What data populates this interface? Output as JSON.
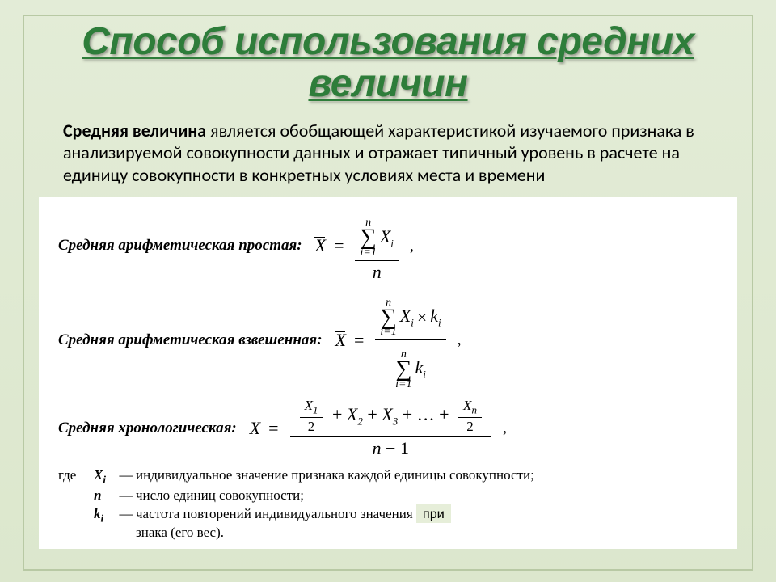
{
  "slide": {
    "background_gradient": [
      "#e3ecd7",
      "#dce7cd"
    ],
    "border_color": "#b8c9a4",
    "title": "Способ использования средних величин",
    "title_color": "#2e7d3a",
    "title_fontsize": 48,
    "title_style": "bold italic underline",
    "title_shadow": "2px 2px 3px rgba(0,0,0,0.35)"
  },
  "paragraph": {
    "lead": "Средняя величина",
    "body": " является обобщающей характеристикой изучаемого признака в анализируемой совокупности данных и отражает типичный уровень в расчете на единицу совокупности в конкретных условиях места и времени",
    "fontsize": 22,
    "color": "#000000"
  },
  "formulas": {
    "background_color": "#ffffff",
    "label_fontsize": 19,
    "formula_fontsize": 22,
    "items": [
      {
        "label": "Средняя арифметическая простая:",
        "lhs": "X̄",
        "numerator": "Σ(i=1..n) Xᵢ",
        "denominator": "n",
        "trailing": ","
      },
      {
        "label": "Средняя арифметическая взвешенная:",
        "lhs": "X̄",
        "numerator": "Σ(i=1..n) Xᵢ × kᵢ",
        "denominator": "Σ(i=1..n) kᵢ",
        "trailing": ","
      },
      {
        "label": "Средняя хронологическая:",
        "lhs": "X̄",
        "numerator": "X₁/2 + X₂ + X₃ + … + Xₙ/2",
        "denominator": "n − 1",
        "trailing": ","
      }
    ]
  },
  "definitions": {
    "where": "где",
    "items": [
      {
        "sym": "Xᵢ",
        "text": "индивидуальное значение признака каждой единицы совокупности;"
      },
      {
        "sym": "n",
        "text": "число единиц совокупности;"
      },
      {
        "sym": "kᵢ",
        "text": "частота повторений индивидуального значения признака (его вес)."
      }
    ],
    "overlay_word": "при"
  }
}
